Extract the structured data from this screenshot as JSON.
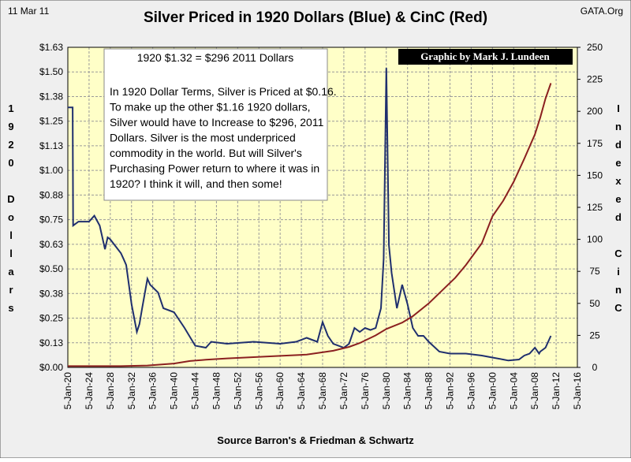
{
  "chart_data": {
    "type": "line",
    "date_label": "11 Mar 11",
    "title": "Silver Priced in 1920 Dollars (Blue) & CinC (Red)",
    "source_site": "GATA.Org",
    "credit": "Graphic by Mark J. Lundeen",
    "annotation_heading": "1920 $1.32 =  $296 2011 Dollars",
    "annotation_lines": [
      "In 1920 Dollar Terms, Silver is Priced at $0.16.",
      "To make up the other $1.16 1920 dollars,",
      "Silver would have to Increase to $296, 2011",
      "Dollars.  Silver is the most underpriced",
      "commodity in the world.   But will Silver's",
      "Purchasing Power return to where it was in",
      "1920?  I think it will, and then some!"
    ],
    "ylabel": "1920 Dollars",
    "y2label": "Indexed CinC",
    "xlabel": "Source Barron's & Friedman & Schwartz",
    "xlim": [
      1920,
      2016
    ],
    "xticks": [
      {
        "value": 1920,
        "label": "5-Jan-20"
      },
      {
        "value": 1924,
        "label": "5-Jan-24"
      },
      {
        "value": 1928,
        "label": "5-Jan-28"
      },
      {
        "value": 1932,
        "label": "5-Jan-32"
      },
      {
        "value": 1936,
        "label": "5-Jan-36"
      },
      {
        "value": 1940,
        "label": "5-Jan-40"
      },
      {
        "value": 1944,
        "label": "5-Jan-44"
      },
      {
        "value": 1948,
        "label": "5-Jan-48"
      },
      {
        "value": 1952,
        "label": "5-Jan-52"
      },
      {
        "value": 1956,
        "label": "5-Jan-56"
      },
      {
        "value": 1960,
        "label": "5-Jan-60"
      },
      {
        "value": 1964,
        "label": "5-Jan-64"
      },
      {
        "value": 1968,
        "label": "5-Jan-68"
      },
      {
        "value": 1972,
        "label": "5-Jan-72"
      },
      {
        "value": 1976,
        "label": "5-Jan-76"
      },
      {
        "value": 1980,
        "label": "5-Jan-80"
      },
      {
        "value": 1984,
        "label": "5-Jan-84"
      },
      {
        "value": 1988,
        "label": "5-Jan-88"
      },
      {
        "value": 1992,
        "label": "5-Jan-92"
      },
      {
        "value": 1996,
        "label": "5-Jan-96"
      },
      {
        "value": 2000,
        "label": "5-Jan-00"
      },
      {
        "value": 2004,
        "label": "5-Jan-04"
      },
      {
        "value": 2008,
        "label": "5-Jan-08"
      },
      {
        "value": 2012,
        "label": "5-Jan-12"
      },
      {
        "value": 2016,
        "label": "5-Jan-16"
      }
    ],
    "ylim": [
      0,
      1.625
    ],
    "yticks": [
      {
        "value": 0,
        "label": "$0.00"
      },
      {
        "value": 0.125,
        "label": "$0.13"
      },
      {
        "value": 0.25,
        "label": "$0.25"
      },
      {
        "value": 0.375,
        "label": "$0.38"
      },
      {
        "value": 0.5,
        "label": "$0.50"
      },
      {
        "value": 0.625,
        "label": "$0.63"
      },
      {
        "value": 0.75,
        "label": "$0.75"
      },
      {
        "value": 0.875,
        "label": "$0.88"
      },
      {
        "value": 1,
        "label": "$1.00"
      },
      {
        "value": 1.125,
        "label": "$1.13"
      },
      {
        "value": 1.25,
        "label": "$1.25"
      },
      {
        "value": 1.375,
        "label": "$1.38"
      },
      {
        "value": 1.5,
        "label": "$1.50"
      },
      {
        "value": 1.625,
        "label": "$1.63"
      }
    ],
    "y2lim": [
      0,
      250
    ],
    "y2ticks": [
      0,
      25,
      50,
      75,
      100,
      125,
      150,
      175,
      200,
      225,
      250
    ],
    "grid": true,
    "series": [
      {
        "name": "Silver",
        "color": "#1f2f6e",
        "x": [
          1920,
          1920.9,
          1921,
          1922,
          1924,
          1925,
          1926,
          1927,
          1927.5,
          1928,
          1930,
          1930.5,
          1931,
          1932,
          1933,
          1933.5,
          1934,
          1935,
          1935.5,
          1937,
          1938,
          1940,
          1942,
          1944,
          1946,
          1947,
          1950,
          1955,
          1960,
          1963,
          1965,
          1967,
          1968,
          1969,
          1970,
          1972,
          1973,
          1974,
          1975,
          1976,
          1977,
          1978,
          1979,
          1979.5,
          1980,
          1980.5,
          1981,
          1982,
          1983,
          1984,
          1985,
          1986,
          1987,
          1988,
          1990,
          1992,
          1995,
          1998,
          2000,
          2002,
          2003,
          2005,
          2006,
          2007,
          2008,
          2008.8,
          2009,
          2010,
          2011
        ],
        "values": [
          1.32,
          1.32,
          0.72,
          0.74,
          0.74,
          0.77,
          0.72,
          0.6,
          0.66,
          0.65,
          0.58,
          0.55,
          0.52,
          0.32,
          0.18,
          0.22,
          0.3,
          0.45,
          0.42,
          0.38,
          0.3,
          0.28,
          0.2,
          0.11,
          0.1,
          0.13,
          0.12,
          0.13,
          0.12,
          0.13,
          0.15,
          0.13,
          0.23,
          0.16,
          0.12,
          0.1,
          0.12,
          0.2,
          0.18,
          0.2,
          0.19,
          0.2,
          0.3,
          0.55,
          1.52,
          0.62,
          0.48,
          0.3,
          0.42,
          0.32,
          0.2,
          0.16,
          0.16,
          0.13,
          0.08,
          0.07,
          0.07,
          0.06,
          0.05,
          0.04,
          0.035,
          0.04,
          0.06,
          0.07,
          0.1,
          0.07,
          0.08,
          0.1,
          0.16
        ]
      },
      {
        "name": "CinC",
        "color": "#8b2020",
        "axis": "y2",
        "x": [
          1920,
          1930,
          1935,
          1940,
          1943,
          1946,
          1950,
          1955,
          1960,
          1965,
          1970,
          1973,
          1975,
          1978,
          1980,
          1983,
          1985,
          1988,
          1990,
          1993,
          1995,
          1998,
          2000,
          2002,
          2004,
          2006,
          2008,
          2009,
          2010,
          2011
        ],
        "values": [
          1,
          1,
          1.5,
          3,
          5,
          6,
          7,
          8,
          9,
          10,
          13,
          16,
          19,
          25,
          30,
          35,
          40,
          50,
          58,
          70,
          80,
          97,
          118,
          130,
          145,
          163,
          182,
          195,
          210,
          222
        ]
      }
    ]
  }
}
